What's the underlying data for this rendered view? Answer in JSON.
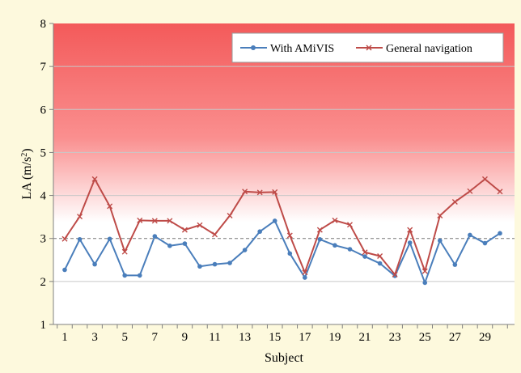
{
  "chart_data": {
    "type": "line",
    "xlabel": "Subject",
    "ylabel": "LA (m/s²)",
    "ylabel_main": "LA (m/s",
    "ylabel_sup": "2",
    "ylabel_tail": ")",
    "ylim": [
      1,
      8
    ],
    "yticks": [
      1,
      2,
      3,
      4,
      5,
      6,
      7,
      8
    ],
    "xlim": [
      1,
      30
    ],
    "xtick_labels": [
      1,
      3,
      5,
      7,
      9,
      11,
      13,
      15,
      17,
      19,
      21,
      23,
      25,
      27,
      29
    ],
    "gridlines": [
      2,
      4,
      5,
      6,
      7
    ],
    "dashed_reference": 3,
    "legend_position": "top-right",
    "x": [
      1,
      2,
      3,
      4,
      5,
      6,
      7,
      8,
      9,
      10,
      11,
      12,
      13,
      14,
      15,
      16,
      17,
      18,
      19,
      20,
      21,
      22,
      23,
      24,
      25,
      26,
      27,
      28,
      29,
      30
    ],
    "series": [
      {
        "name": "With AMiVIS",
        "color": "#4a7ebb",
        "marker": "circle",
        "values": [
          2.27,
          2.98,
          2.4,
          2.99,
          2.14,
          2.14,
          3.05,
          2.83,
          2.88,
          2.35,
          2.4,
          2.43,
          2.73,
          3.16,
          3.41,
          2.65,
          2.09,
          2.98,
          2.84,
          2.75,
          2.58,
          2.42,
          2.13,
          2.9,
          1.97,
          2.95,
          2.39,
          3.08,
          2.89,
          3.12
        ]
      },
      {
        "name": "General navigation",
        "color": "#be4b48",
        "marker": "x",
        "values": [
          2.99,
          3.51,
          4.38,
          3.75,
          2.69,
          3.42,
          3.41,
          3.41,
          3.2,
          3.31,
          3.09,
          3.53,
          4.09,
          4.07,
          4.08,
          3.07,
          2.21,
          3.2,
          3.42,
          3.32,
          2.68,
          2.59,
          2.16,
          3.2,
          2.24,
          3.53,
          3.85,
          4.1,
          4.38,
          4.09
        ]
      }
    ]
  }
}
